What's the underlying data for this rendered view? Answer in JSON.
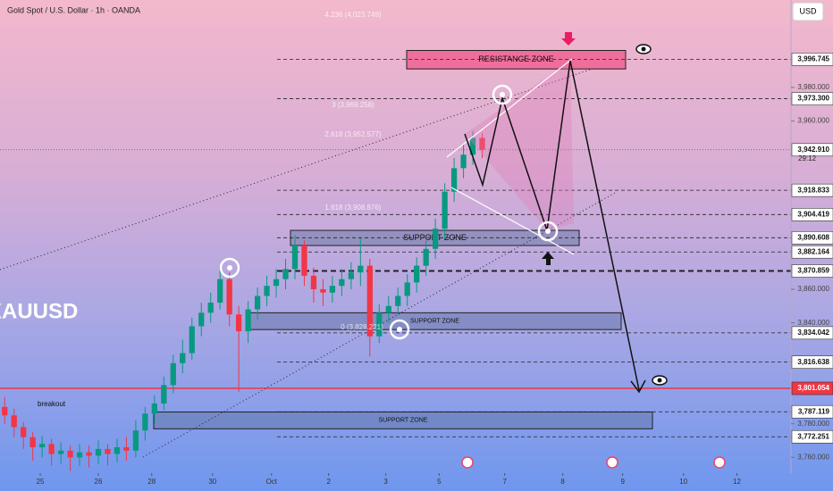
{
  "chart_data": {
    "type": "candlestick",
    "title": "Gold Spot / U.S. Dollar · 1h · OANDA",
    "symbol": "XAUUSD",
    "currency": "USD",
    "ylim": [
      3740,
      4032
    ],
    "xlim": [
      0,
      84
    ],
    "yticks": [
      {
        "value": 3760,
        "label": "3,760.000"
      },
      {
        "value": 3780,
        "label": "3,780.000"
      },
      {
        "value": 3840,
        "label": "3,840.000"
      },
      {
        "value": 3860,
        "label": "3,860.000"
      },
      {
        "value": 3960,
        "label": "3,960.000"
      },
      {
        "value": 3980,
        "label": "3,980.000"
      }
    ],
    "xticks": [
      {
        "value": 4.3,
        "label": "25"
      },
      {
        "value": 10.5,
        "label": "26"
      },
      {
        "value": 16.2,
        "label": "28"
      },
      {
        "value": 22.7,
        "label": "30"
      },
      {
        "value": 29,
        "label": "Oct"
      },
      {
        "value": 35.1,
        "label": "2"
      },
      {
        "value": 41.2,
        "label": "3"
      },
      {
        "value": 46.9,
        "label": "5"
      },
      {
        "value": 53.9,
        "label": "7"
      },
      {
        "value": 60.1,
        "label": "8"
      },
      {
        "value": 66.5,
        "label": "9"
      },
      {
        "value": 73,
        "label": "10"
      },
      {
        "value": 78.7,
        "label": "12"
      }
    ],
    "candles": {
      "up_color": "#089981",
      "down_color": "#f23645",
      "x": [
        0,
        1,
        2,
        3,
        4,
        5,
        6,
        7,
        8,
        9,
        10,
        11,
        12,
        13,
        14,
        15,
        16,
        17,
        18,
        19,
        20,
        21,
        22,
        23,
        24,
        25,
        26,
        27,
        28,
        29,
        30,
        31,
        32,
        33,
        34,
        35,
        36,
        37,
        38,
        39,
        40,
        41,
        42,
        43,
        44,
        45,
        46,
        47,
        48,
        49,
        50,
        51
      ],
      "open": [
        3790,
        3785,
        3778,
        3772,
        3766,
        3768,
        3762,
        3764,
        3760,
        3763,
        3761,
        3765,
        3762,
        3766,
        3764,
        3776,
        3786,
        3792,
        3803,
        3816,
        3822,
        3838,
        3846,
        3852,
        3866,
        3845,
        3835,
        3848,
        3856,
        3862,
        3866,
        3872,
        3886,
        3868,
        3860,
        3858,
        3862,
        3866,
        3870,
        3874,
        3832,
        3846,
        3850,
        3856,
        3864,
        3874,
        3884,
        3896,
        3918,
        3932,
        3940,
        3950
      ],
      "high": [
        3796,
        3789,
        3781,
        3775,
        3773,
        3771,
        3769,
        3767,
        3768,
        3767,
        3770,
        3768,
        3771,
        3772,
        3782,
        3790,
        3797,
        3808,
        3821,
        3830,
        3843,
        3852,
        3858,
        3873,
        3870,
        3850,
        3853,
        3861,
        3868,
        3872,
        3878,
        3892,
        3889,
        3873,
        3866,
        3868,
        3872,
        3876,
        3890,
        3878,
        3851,
        3856,
        3861,
        3869,
        3879,
        3889,
        3902,
        3923,
        3938,
        3946,
        3954,
        3953
      ],
      "low": [
        3780,
        3772,
        3765,
        3758,
        3760,
        3755,
        3756,
        3752,
        3755,
        3754,
        3756,
        3755,
        3757,
        3758,
        3760,
        3770,
        3780,
        3788,
        3798,
        3810,
        3818,
        3832,
        3840,
        3848,
        3838,
        3799,
        3828,
        3842,
        3850,
        3855,
        3860,
        3866,
        3862,
        3852,
        3850,
        3852,
        3856,
        3860,
        3862,
        3820,
        3828,
        3840,
        3845,
        3850,
        3858,
        3868,
        3878,
        3890,
        3912,
        3926,
        3934,
        3938
      ],
      "close": [
        3785,
        3778,
        3772,
        3766,
        3768,
        3762,
        3764,
        3760,
        3763,
        3761,
        3765,
        3762,
        3766,
        3764,
        3776,
        3786,
        3792,
        3803,
        3816,
        3822,
        3838,
        3846,
        3852,
        3866,
        3845,
        3835,
        3848,
        3856,
        3862,
        3866,
        3872,
        3886,
        3868,
        3860,
        3858,
        3862,
        3866,
        3870,
        3874,
        3832,
        3846,
        3850,
        3856,
        3864,
        3874,
        3884,
        3896,
        3918,
        3932,
        3940,
        3950,
        3943
      ]
    },
    "price_levels": [
      {
        "value": 3996.745,
        "label": "3,996.745"
      },
      {
        "value": 3973.3,
        "label": "3,973.300"
      },
      {
        "value": 3918.833,
        "label": "3,918.833"
      },
      {
        "value": 3904.419,
        "label": "3,904.419"
      },
      {
        "value": 3890.608,
        "label": "3,890.608"
      },
      {
        "value": 3882.164,
        "label": "3,882.164"
      },
      {
        "value": 3870.859,
        "label": "3,870.859"
      },
      {
        "value": 3834.042,
        "label": "3,834.042"
      },
      {
        "value": 3816.638,
        "label": "3,816.638"
      },
      {
        "value": 3787.119,
        "label": "3,787.119"
      },
      {
        "value": 3772.251,
        "label": "3,772.251"
      }
    ],
    "current_price": {
      "value": 3942.91,
      "label": "3,942.910",
      "countdown": "29:12"
    },
    "alert_level": {
      "value": 3801.054,
      "label": "3,801.054",
      "color": "#f23645"
    },
    "zones": [
      {
        "label": "RESISTANCE ZONE",
        "top": 4002,
        "bottom": 3991,
        "color": "#f06292"
      },
      {
        "label": "SUPPORT ZONE",
        "top": 3895,
        "bottom": 3886,
        "color": "#5c6f9e"
      },
      {
        "label": "SUPPORT ZONE",
        "top": 3846,
        "bottom": 3836,
        "color": "#5c6f9e"
      },
      {
        "label": "SUPPORT ZONE",
        "top": 3787,
        "bottom": 3777,
        "color": "#5c6f9e"
      }
    ],
    "annotations": [
      "4.236 (4,023.749)",
      "3 (3,969.258)",
      "2.618 (3,952.577)",
      "1.618 (3,908.876)",
      "0 (3,828.221)",
      "breakout"
    ]
  }
}
